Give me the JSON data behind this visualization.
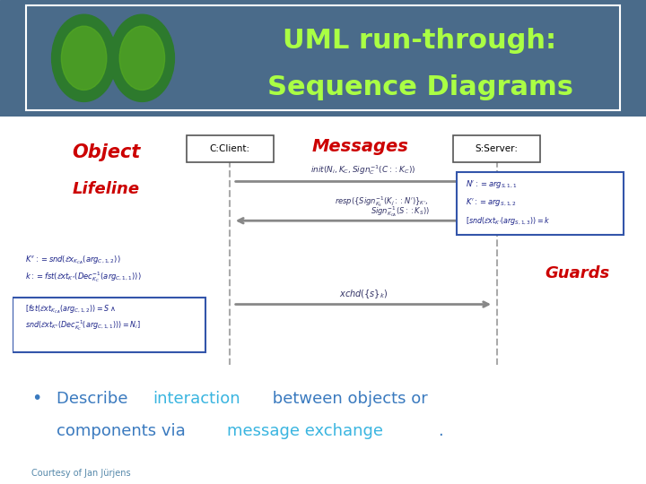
{
  "bg_color": "#ffffff",
  "header_bg": "#4a6b8a",
  "header_title_line1": "UML run-through:",
  "header_title_line2": "Sequence Diagrams",
  "header_text_color": "#aaff44",
  "label_object": "Object",
  "label_lifeline": "Lifeline",
  "label_messages": "Messages",
  "label_guards": "Guards",
  "label_color_red": "#cc0000",
  "label_color_blue": "#3355aa",
  "client_box_label": "C:Client:",
  "server_box_label": "S:Server:",
  "bullet_text_parts": [
    {
      "text": "• Describe ",
      "color": "#3a7abf",
      "bold": false
    },
    {
      "text": "interaction",
      "color": "#3ab5e0",
      "bold": false
    },
    {
      "text": " between objects or",
      "color": "#3a7abf",
      "bold": false
    }
  ],
  "bullet_line2_parts": [
    {
      "text": "   components via ",
      "color": "#3a7abf",
      "bold": false
    },
    {
      "text": "message exchange",
      "color": "#3ab5e0",
      "bold": false
    },
    {
      "text": ".",
      "color": "#3a7abf",
      "bold": false
    }
  ],
  "courtesy_text": "Courtesy of Jan Jürjens",
  "courtesy_color": "#5588aa",
  "diagram_bg": "#f8f8f8",
  "arrow_color": "#888888",
  "box_border_color": "#4444aa",
  "msg1": "init(Nᵢ, KⲄ, Sign⁻¹(C :: KⲄ))",
  "msg2_line1": "resp({Sign⁻¹(KⲀ :: N')}ᵏ',",
  "msg2_line2": "Sign⁻¹(S :: Kₛ))",
  "msg3": "xchd({s}ᵏ)"
}
